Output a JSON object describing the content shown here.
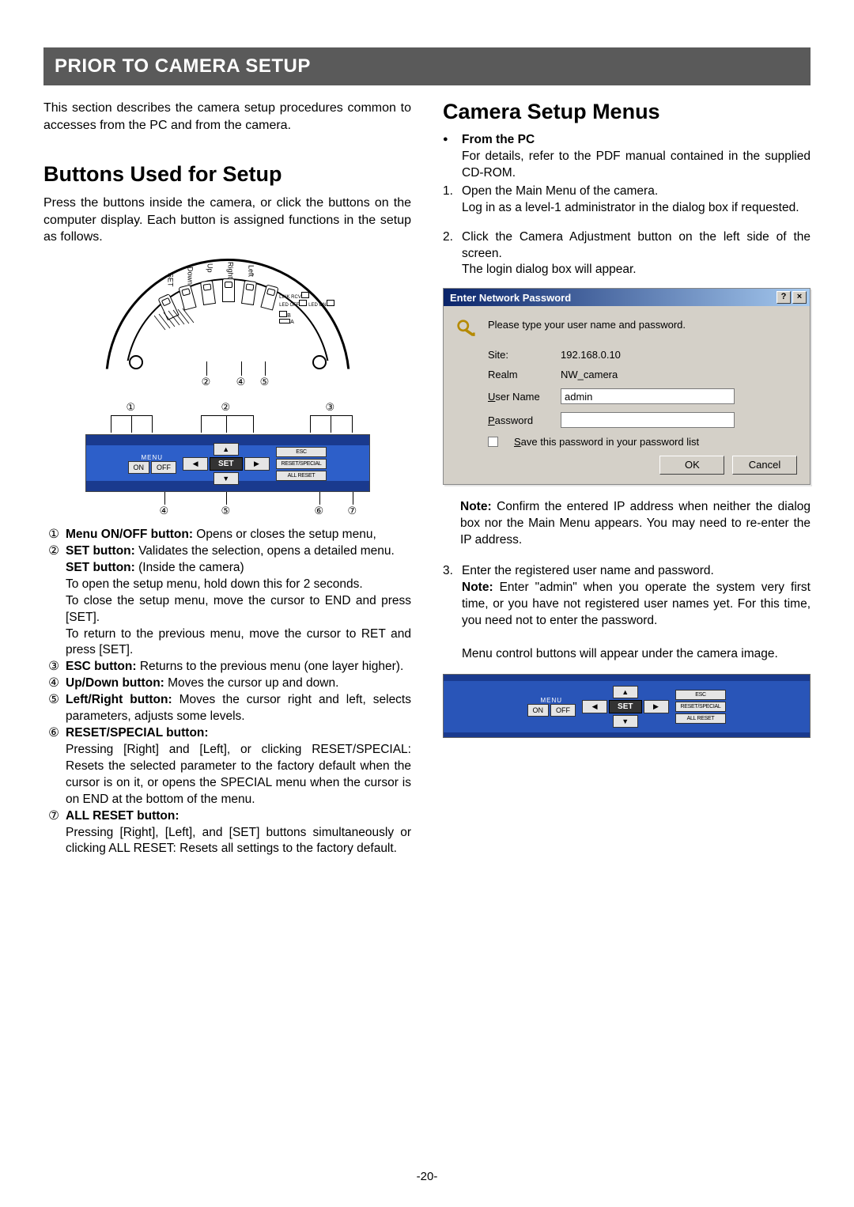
{
  "header_title": "PRIOR TO CAMERA SETUP",
  "intro": "This section describes the camera setup procedures common to accesses from the PC and from the camera.",
  "left": {
    "heading": "Buttons Used for Setup",
    "desc": "Press the buttons inside the camera, or click the buttons on the computer display. Each button is assigned functions in the setup as follows.",
    "cam_labels": {
      "set": "SET",
      "down": "Down",
      "up": "Up",
      "right": "Right",
      "left": "Left",
      "link_rcv": "LINK\nRCV",
      "led_off": "LED\nOFF",
      "led_on": "LED\nON",
      "a": "A",
      "b": "B"
    },
    "panel": {
      "menu": "MENU",
      "on": "ON",
      "off": "OFF",
      "set": "SET",
      "esc": "ESC",
      "reset": "RESET/SPECIAL",
      "allreset": "ALL RESET",
      "up": "▲",
      "down": "▼",
      "left": "◀",
      "right": "▶"
    },
    "markers_top_cam": [
      "②",
      "④",
      "⑤"
    ],
    "markers_top_panel": [
      "①",
      "②",
      "③"
    ],
    "markers_bot_panel": [
      "④",
      "⑤",
      "⑥",
      "⑦"
    ],
    "items": [
      {
        "num": "①",
        "title": "Menu ON/OFF button:",
        "text": " Opens or closes the setup menu,"
      },
      {
        "num": "②",
        "title": "SET button:",
        "text": " Validates the selection, opens a detailed menu.",
        "sub": [
          {
            "b": "SET button: ",
            "t": "(Inside the camera)"
          },
          {
            "t": "To open the setup menu, hold down this for 2 seconds."
          },
          {
            "t": "To close the setup menu, move the cursor to END and press [SET]."
          },
          {
            "t": "To return to the previous menu, move the cursor to RET and press [SET]."
          }
        ]
      },
      {
        "num": "③",
        "title": "ESC button:",
        "text": " Returns to the previous menu (one layer higher)."
      },
      {
        "num": "④",
        "title": "Up/Down button:",
        "text": " Moves the cursor up and down."
      },
      {
        "num": "⑤",
        "title": "Left/Right button:",
        "text": " Moves the cursor right and left, selects parameters, adjusts some levels."
      },
      {
        "num": "⑥",
        "title": "RESET/SPECIAL button:",
        "text": "",
        "sub": [
          {
            "t": "Pressing [Right] and [Left], or clicking RESET/SPECIAL: Resets the selected parameter to the factory default when the cursor is on it, or opens the SPECIAL menu when the cursor is on END at the bottom of the menu."
          }
        ]
      },
      {
        "num": "⑦",
        "title": "ALL RESET button:",
        "text": "",
        "sub": [
          {
            "t": "Pressing [Right], [Left], and [SET] buttons simultaneously or clicking ALL RESET: Resets all settings to the factory default."
          }
        ]
      }
    ]
  },
  "right": {
    "heading": "Camera Setup Menus",
    "from_pc": "From the PC",
    "from_pc_text": "For details, refer to the PDF manual contained in the supplied CD-ROM.",
    "step1a": "Open the Main Menu of the camera.",
    "step1b": "Log in as a level-1 administrator in the dialog box if requested.",
    "step2a": "Click the Camera Adjustment button on the left side of the screen.",
    "step2b": "The login dialog box will appear.",
    "dialog": {
      "title": "Enter Network Password",
      "prompt": "Please type your user name and password.",
      "site_lbl": "Site:",
      "site_val": "192.168.0.10",
      "realm_lbl": "Realm",
      "realm_val": "NW_camera",
      "user_lbl": "User Name",
      "user_val": "admin",
      "pass_lbl": "Password",
      "pass_val": "",
      "save": "Save this password in your password list",
      "ok": "OK",
      "cancel": "Cancel"
    },
    "note1_b": "Note: ",
    "note1": "Confirm the entered IP address when neither the dialog box nor the Main Menu appears. You may need to re-enter the IP address.",
    "step3a": "Enter the registered user name and password.",
    "step3_note_b": "Note: ",
    "step3_note": "Enter \"admin\" when you operate the system very first time, or you have not registered user names yet. For this time, you need not to enter the password.",
    "step3c": "Menu control buttons will appear under the camera image."
  },
  "page_number": "-20-"
}
